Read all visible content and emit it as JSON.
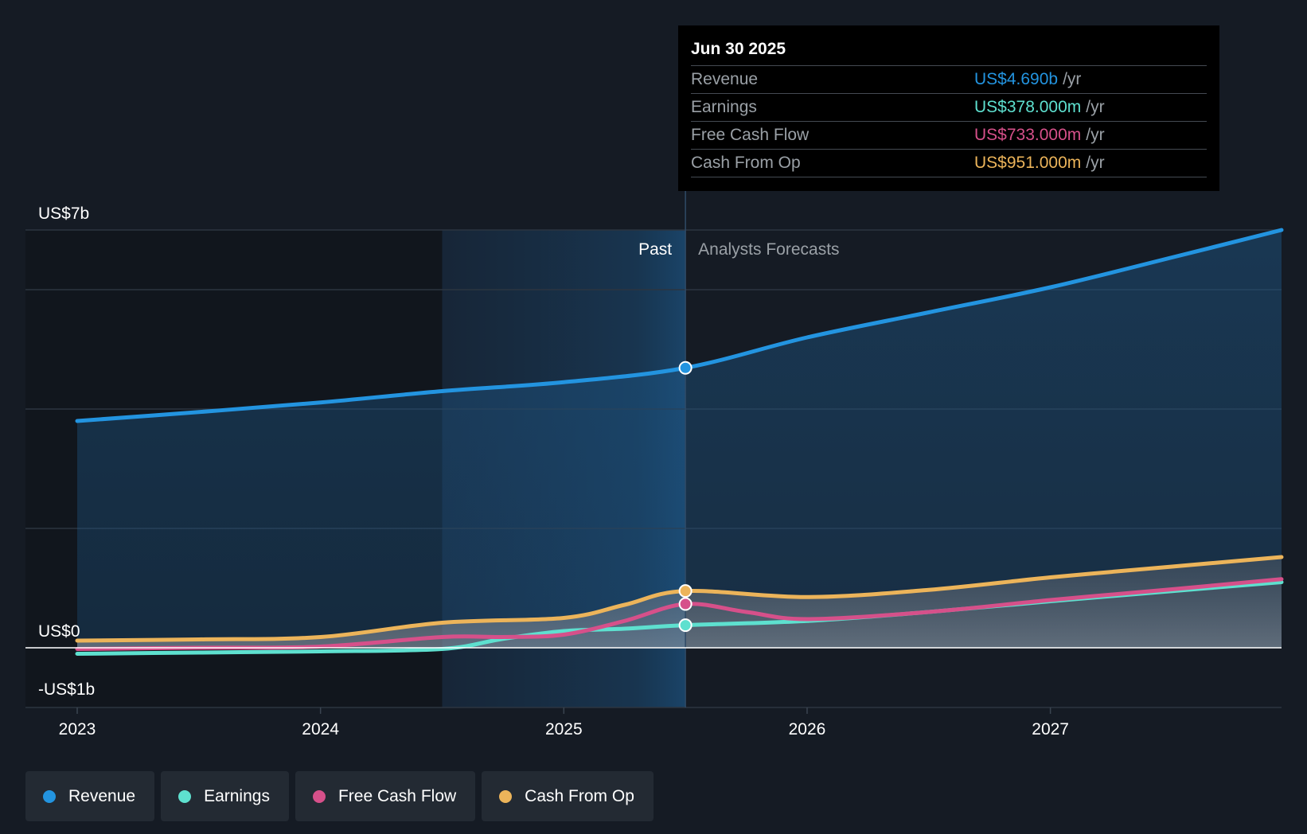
{
  "tooltip": {
    "date": "Jun 30 2025",
    "rows": [
      {
        "label": "Revenue",
        "value": "US$4.690b",
        "unit": "/yr",
        "color": "#2394e0"
      },
      {
        "label": "Earnings",
        "value": "US$378.000m",
        "unit": "/yr",
        "color": "#5ee0cf"
      },
      {
        "label": "Free Cash Flow",
        "value": "US$733.000m",
        "unit": "/yr",
        "color": "#d6508a"
      },
      {
        "label": "Cash From Op",
        "value": "US$951.000m",
        "unit": "/yr",
        "color": "#ecb45a"
      }
    ]
  },
  "legend": [
    {
      "label": "Revenue",
      "color": "#2394e0"
    },
    {
      "label": "Earnings",
      "color": "#5ee0cf"
    },
    {
      "label": "Free Cash Flow",
      "color": "#d6508a"
    },
    {
      "label": "Cash From Op",
      "color": "#ecb45a"
    }
  ],
  "chart_data": {
    "type": "line",
    "title": "",
    "y_labels": [
      "US$7b",
      "US$0",
      "-US$1b"
    ],
    "ylim": [
      -1,
      7
    ],
    "xlim": [
      2023.0,
      2027.95
    ],
    "x_ticks": [
      {
        "label": "2023",
        "value": 2023.0
      },
      {
        "label": "2024",
        "value": 2024.0
      },
      {
        "label": "2025",
        "value": 2025.0
      },
      {
        "label": "2026",
        "value": 2026.0
      },
      {
        "label": "2027",
        "value": 2027.0
      }
    ],
    "gridlines": [
      7,
      6,
      4,
      2,
      0,
      -1
    ],
    "past_label": "Past",
    "forecast_label": "Analysts Forecasts",
    "divider_x": 2025.5,
    "highlight_start": 2024.5,
    "series": [
      {
        "name": "Revenue",
        "color": "#2394e0",
        "points": [
          [
            2023.0,
            3.8
          ],
          [
            2023.5,
            3.95
          ],
          [
            2024.0,
            4.11
          ],
          [
            2024.5,
            4.3
          ],
          [
            2025.0,
            4.45
          ],
          [
            2025.5,
            4.69
          ],
          [
            2026.0,
            5.2
          ],
          [
            2026.5,
            5.62
          ],
          [
            2027.0,
            6.04
          ],
          [
            2027.5,
            6.54
          ],
          [
            2027.95,
            7.0
          ]
        ]
      },
      {
        "name": "Earnings",
        "color": "#5ee0cf",
        "points": [
          [
            2023.0,
            -0.1
          ],
          [
            2023.5,
            -0.08
          ],
          [
            2024.0,
            -0.06
          ],
          [
            2024.5,
            -0.02
          ],
          [
            2024.75,
            0.15
          ],
          [
            2025.0,
            0.28
          ],
          [
            2025.25,
            0.32
          ],
          [
            2025.5,
            0.378
          ],
          [
            2026.0,
            0.45
          ],
          [
            2026.5,
            0.6
          ],
          [
            2027.0,
            0.78
          ],
          [
            2027.5,
            0.95
          ],
          [
            2027.95,
            1.1
          ]
        ]
      },
      {
        "name": "Free Cash Flow",
        "color": "#d6508a",
        "points": [
          [
            2023.0,
            -0.02
          ],
          [
            2023.5,
            0.0
          ],
          [
            2024.0,
            0.02
          ],
          [
            2024.5,
            0.18
          ],
          [
            2024.75,
            0.18
          ],
          [
            2025.0,
            0.22
          ],
          [
            2025.25,
            0.45
          ],
          [
            2025.5,
            0.733
          ],
          [
            2025.75,
            0.6
          ],
          [
            2026.0,
            0.48
          ],
          [
            2026.5,
            0.6
          ],
          [
            2027.0,
            0.8
          ],
          [
            2027.5,
            0.98
          ],
          [
            2027.95,
            1.15
          ]
        ]
      },
      {
        "name": "Cash From Op",
        "color": "#ecb45a",
        "points": [
          [
            2023.0,
            0.12
          ],
          [
            2023.5,
            0.14
          ],
          [
            2024.0,
            0.18
          ],
          [
            2024.5,
            0.42
          ],
          [
            2025.0,
            0.5
          ],
          [
            2025.25,
            0.72
          ],
          [
            2025.5,
            0.951
          ],
          [
            2026.0,
            0.85
          ],
          [
            2026.5,
            0.97
          ],
          [
            2027.0,
            1.18
          ],
          [
            2027.5,
            1.36
          ],
          [
            2027.95,
            1.52
          ]
        ]
      }
    ]
  }
}
